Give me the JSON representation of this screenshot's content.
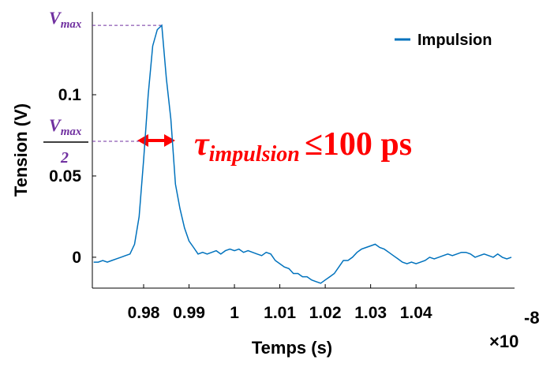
{
  "chart_data": {
    "type": "line",
    "xlabel": "Temps (s)",
    "ylabel": "Tension (V)",
    "x_exponent": {
      "base": "×10",
      "power": "-8"
    },
    "x": [
      0.969,
      0.97,
      0.971,
      0.972,
      0.973,
      0.974,
      0.975,
      0.976,
      0.977,
      0.978,
      0.979,
      0.98,
      0.981,
      0.982,
      0.983,
      0.984,
      0.985,
      0.986,
      0.987,
      0.988,
      0.989,
      0.99,
      0.991,
      0.992,
      0.993,
      0.994,
      0.995,
      0.996,
      0.997,
      0.998,
      0.999,
      1.0,
      1.001,
      1.002,
      1.003,
      1.004,
      1.005,
      1.006,
      1.007,
      1.008,
      1.009,
      1.01,
      1.011,
      1.012,
      1.013,
      1.014,
      1.015,
      1.016,
      1.017,
      1.018,
      1.019,
      1.02,
      1.021,
      1.022,
      1.023,
      1.024,
      1.025,
      1.026,
      1.027,
      1.028,
      1.029,
      1.03,
      1.031,
      1.032,
      1.033,
      1.034,
      1.035,
      1.036,
      1.037,
      1.038,
      1.039,
      1.04,
      1.041,
      1.042,
      1.043,
      1.044,
      1.045,
      1.046,
      1.047,
      1.048,
      1.049,
      1.05,
      1.051,
      1.052,
      1.053,
      1.054,
      1.055,
      1.056,
      1.057,
      1.058,
      1.059,
      1.06,
      1.061
    ],
    "series": [
      {
        "name": "Impulsion",
        "color": "#0072bd",
        "values": [
          -0.003,
          -0.003,
          -0.002,
          -0.003,
          -0.002,
          -0.001,
          0.0,
          0.001,
          0.002,
          0.008,
          0.025,
          0.06,
          0.1,
          0.13,
          0.14,
          0.1427,
          0.11,
          0.085,
          0.045,
          0.03,
          0.018,
          0.01,
          0.006,
          0.002,
          0.003,
          0.002,
          0.003,
          0.004,
          0.002,
          0.004,
          0.005,
          0.004,
          0.005,
          0.003,
          0.004,
          0.003,
          0.002,
          0.001,
          0.003,
          0.002,
          -0.002,
          -0.004,
          -0.006,
          -0.007,
          -0.01,
          -0.01,
          -0.012,
          -0.012,
          -0.014,
          -0.015,
          -0.016,
          -0.014,
          -0.012,
          -0.01,
          -0.006,
          -0.002,
          -0.002,
          0.0,
          0.003,
          0.005,
          0.006,
          0.007,
          0.008,
          0.006,
          0.005,
          0.003,
          0.001,
          -0.001,
          -0.003,
          -0.004,
          -0.003,
          -0.004,
          -0.003,
          -0.002,
          0.0,
          -0.001,
          0.0,
          0.001,
          0.002,
          0.001,
          0.002,
          0.003,
          0.003,
          0.002,
          0.0,
          0.001,
          0.002,
          0.001,
          0.0,
          0.002,
          0.0,
          -0.001,
          0.0
        ]
      }
    ],
    "xlim": [
      0.9687,
      1.0617
    ],
    "ylim": [
      -0.019,
      0.151
    ],
    "xticks": [
      0.98,
      0.99,
      1,
      1.01,
      1.02,
      1.03,
      1.04
    ],
    "yticks": [
      0,
      0.05,
      0.1
    ],
    "legend": "top-right",
    "annotations": {
      "vmax": {
        "base": "V",
        "sub": "max"
      },
      "vhalf": {
        "base": "V",
        "sub": "max",
        "den": "2"
      },
      "tau": {
        "symbol": "τ",
        "sub": "impulsion",
        "text": "≤100 ps"
      }
    }
  }
}
